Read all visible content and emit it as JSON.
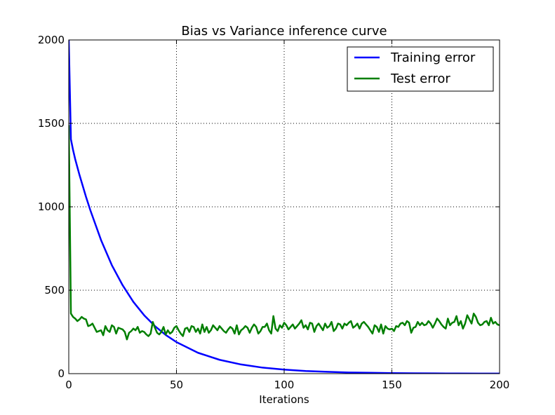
{
  "chart_data": {
    "type": "line",
    "title": "Bias vs Variance inference curve",
    "xlabel": "Iterations",
    "ylabel": "",
    "xlim": [
      0,
      200
    ],
    "ylim": [
      0,
      2000
    ],
    "xticks": [
      "0",
      "50",
      "100",
      "150",
      "200"
    ],
    "yticks": [
      "0",
      "500",
      "1000",
      "1500",
      "2000"
    ],
    "grid": true,
    "legend_position": "top-right",
    "series": [
      {
        "name": "Training error",
        "color": "#0000ff",
        "x": [
          0,
          1,
          2,
          3,
          5,
          8,
          10,
          15,
          20,
          25,
          30,
          35,
          40,
          45,
          50,
          60,
          70,
          80,
          90,
          100,
          110,
          120,
          130,
          140,
          150,
          160,
          170,
          180,
          190,
          200
        ],
        "y": [
          2000,
          1405,
          1340,
          1285,
          1190,
          1060,
          980,
          800,
          650,
          530,
          430,
          350,
          285,
          232,
          189,
          125,
          83,
          55,
          36,
          24,
          16,
          11,
          7,
          5,
          3,
          2,
          1.5,
          1,
          0.7,
          0.5
        ]
      },
      {
        "name": "Test error",
        "color": "#007f00",
        "x": [
          0,
          1,
          2,
          3,
          4,
          5,
          6,
          7,
          8,
          9,
          10,
          11,
          12,
          13,
          14,
          15,
          16,
          17,
          18,
          19,
          20,
          21,
          22,
          23,
          24,
          25,
          26,
          27,
          28,
          29,
          30,
          31,
          32,
          33,
          34,
          35,
          36,
          37,
          38,
          39,
          40,
          41,
          42,
          43,
          44,
          45,
          46,
          47,
          48,
          49,
          50,
          51,
          52,
          53,
          54,
          55,
          56,
          57,
          58,
          59,
          60,
          61,
          62,
          63,
          64,
          65,
          66,
          67,
          68,
          69,
          70,
          71,
          72,
          73,
          74,
          75,
          76,
          77,
          78,
          79,
          80,
          81,
          82,
          83,
          84,
          85,
          86,
          87,
          88,
          89,
          90,
          91,
          92,
          93,
          94,
          95,
          96,
          97,
          98,
          99,
          100,
          101,
          102,
          103,
          104,
          105,
          106,
          107,
          108,
          109,
          110,
          111,
          112,
          113,
          114,
          115,
          116,
          117,
          118,
          119,
          120,
          121,
          122,
          123,
          124,
          125,
          126,
          127,
          128,
          129,
          130,
          131,
          132,
          133,
          134,
          135,
          136,
          137,
          138,
          139,
          140,
          141,
          142,
          143,
          144,
          145,
          146,
          147,
          148,
          149,
          150,
          151,
          152,
          153,
          154,
          155,
          156,
          157,
          158,
          159,
          160,
          161,
          162,
          163,
          164,
          165,
          166,
          167,
          168,
          169,
          170,
          171,
          172,
          173,
          174,
          175,
          176,
          177,
          178,
          179,
          180,
          181,
          182,
          183,
          184,
          185,
          186,
          187,
          188,
          189,
          190,
          191,
          192,
          193,
          194,
          195,
          196,
          197,
          198,
          199,
          200
        ],
        "y": [
          1490,
          360,
          340,
          330,
          315,
          325,
          340,
          330,
          325,
          285,
          290,
          300,
          275,
          250,
          255,
          260,
          230,
          285,
          260,
          250,
          290,
          280,
          240,
          275,
          270,
          265,
          250,
          205,
          245,
          255,
          270,
          260,
          280,
          245,
          255,
          250,
          235,
          225,
          240,
          310,
          275,
          245,
          235,
          250,
          280,
          235,
          260,
          240,
          250,
          275,
          285,
          260,
          240,
          225,
          270,
          275,
          250,
          285,
          280,
          250,
          270,
          240,
          295,
          250,
          280,
          245,
          260,
          290,
          275,
          260,
          285,
          270,
          255,
          245,
          265,
          280,
          270,
          240,
          290,
          235,
          260,
          270,
          285,
          275,
          245,
          275,
          295,
          280,
          240,
          255,
          280,
          280,
          300,
          260,
          240,
          345,
          270,
          255,
          290,
          275,
          305,
          290,
          265,
          280,
          295,
          270,
          285,
          300,
          320,
          275,
          290,
          265,
          305,
          300,
          250,
          285,
          300,
          280,
          260,
          300,
          275,
          285,
          310,
          255,
          270,
          300,
          295,
          270,
          300,
          290,
          305,
          315,
          275,
          285,
          300,
          270,
          300,
          310,
          295,
          280,
          260,
          240,
          290,
          280,
          250,
          295,
          240,
          285,
          270,
          265,
          270,
          255,
          285,
          280,
          300,
          305,
          290,
          315,
          305,
          245,
          275,
          280,
          310,
          290,
          305,
          290,
          295,
          315,
          300,
          275,
          300,
          330,
          315,
          295,
          280,
          270,
          330,
          290,
          305,
          310,
          345,
          290,
          315,
          270,
          300,
          350,
          325,
          300,
          360,
          340,
          305,
          290,
          295,
          310,
          315,
          290,
          335,
          300,
          310,
          295,
          290
        ]
      }
    ]
  }
}
